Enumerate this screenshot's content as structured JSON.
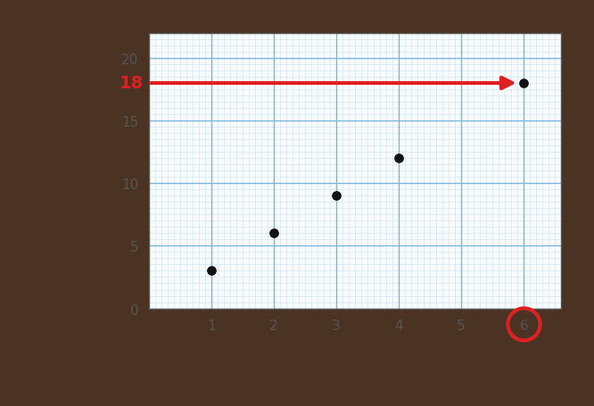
{
  "chart_data": {
    "type": "scatter",
    "x": [
      1,
      2,
      3,
      4,
      6
    ],
    "values": [
      3,
      6,
      9,
      12,
      18
    ],
    "color": "#111111",
    "marker": "o",
    "xlim": [
      0,
      6.6
    ],
    "xticks": [
      1,
      2,
      3,
      4,
      5,
      6
    ],
    "ylim": [
      0,
      22
    ],
    "yticks": [
      0,
      5,
      10,
      15,
      20
    ],
    "grid": true,
    "annotations": [
      {
        "text": "18",
        "x": 6,
        "y": 18,
        "color": "#e02020"
      }
    ]
  }
}
